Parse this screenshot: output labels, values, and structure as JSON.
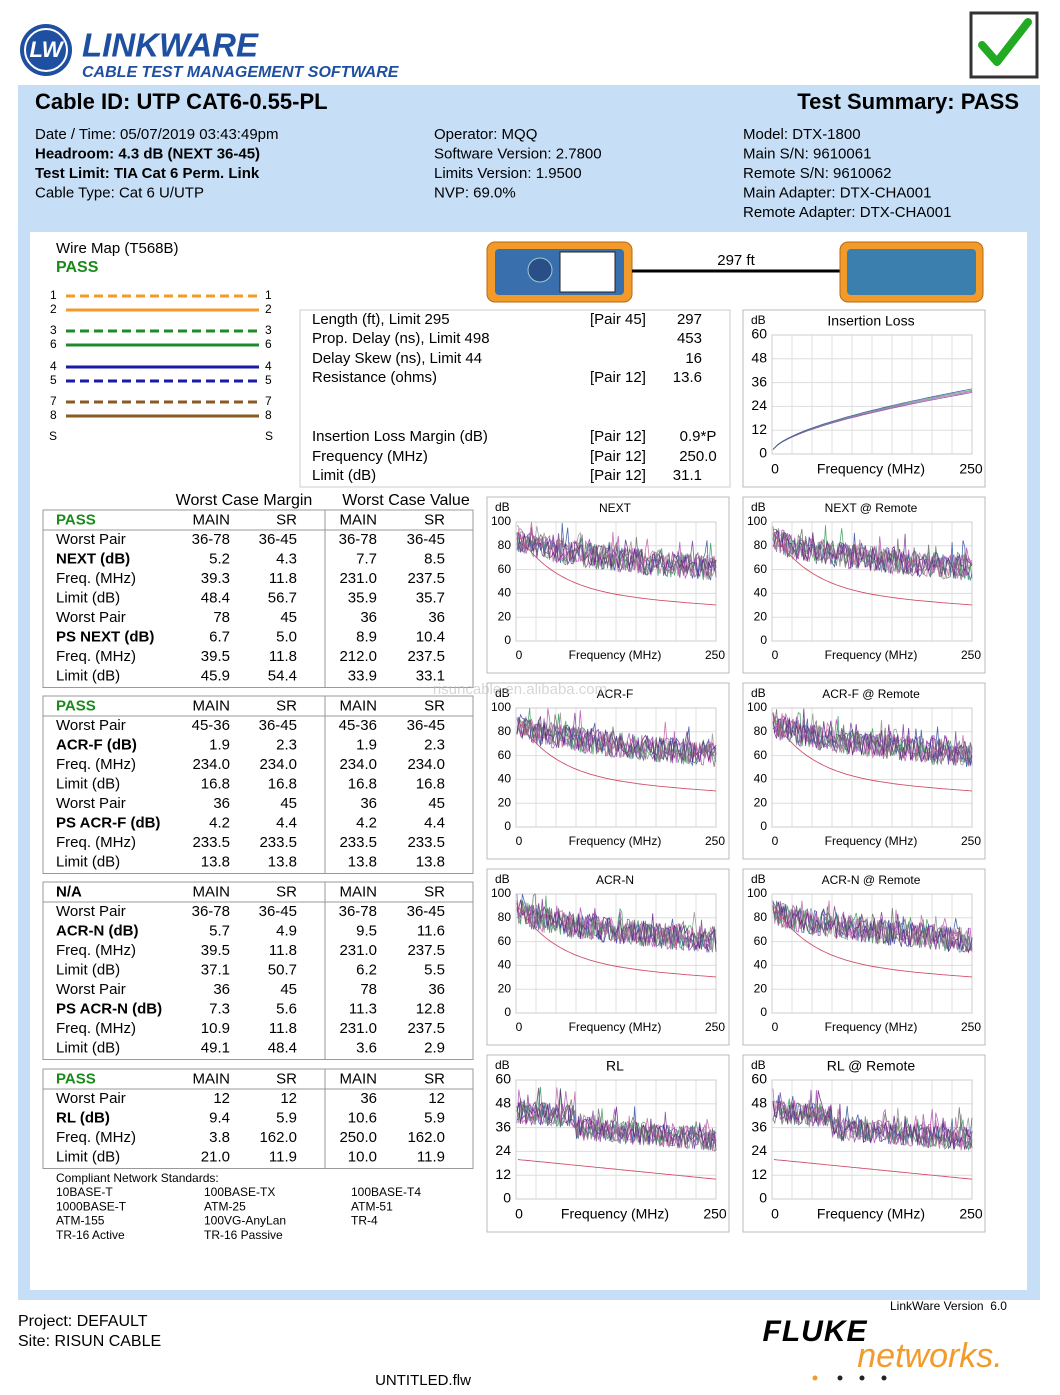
{
  "header": {
    "logo": "LW",
    "brand": "LINKWARE",
    "tagline": "CABLE TEST MANAGEMENT SOFTWARE"
  },
  "cable_id": "Cable ID: UTP CAT6-0.55-PL",
  "summary": "Test Summary: PASS",
  "info": [
    [
      {
        "text": "Date / Time: 05/07/2019 03:43:49pm"
      },
      {
        "text": "Headroom: 4.3 dB (NEXT 36-45)",
        "bold": true
      },
      {
        "text": "Test Limit: TIA Cat 6 Perm. Link",
        "bold": true
      },
      {
        "text": "Cable Type: Cat 6 U/UTP"
      }
    ],
    [
      {
        "text": "Operator: MQQ"
      },
      {
        "text": "Software Version: 2.7800"
      },
      {
        "text": "Limits Version: 1.9500"
      },
      {
        "text": "NVP: 69.0%"
      }
    ],
    [
      {
        "text": "Model: DTX-1800"
      },
      {
        "text": "Main S/N: 9610061"
      },
      {
        "text": "Remote S/N: 9610062"
      },
      {
        "text": "Main Adapter: DTX-CHA001"
      },
      {
        "text": "Remote Adapter: DTX-CHA001"
      }
    ]
  ],
  "wire_map": {
    "title": "Wire Map (T568B)",
    "status": "PASS",
    "pins": [
      {
        "label": "1",
        "color": "#f39a2a",
        "dashed": true
      },
      {
        "label": "2",
        "color": "#f39a2a",
        "dashed": false
      },
      {
        "label": "3",
        "color": "#1d8a2e",
        "dashed": true
      },
      {
        "label": "6",
        "color": "#1d8a2e",
        "dashed": false
      },
      {
        "label": "4",
        "color": "#1a1aa8",
        "dashed": false
      },
      {
        "label": "5",
        "color": "#1a1aa8",
        "dashed": true
      },
      {
        "label": "7",
        "color": "#8a5a20",
        "dashed": true
      },
      {
        "label": "8",
        "color": "#8a5a20",
        "dashed": false
      }
    ],
    "shield": "S"
  },
  "link": {
    "length": "297 ft"
  },
  "results": [
    {
      "label": "Length (ft), Limit 295",
      "pair": "[Pair 45]",
      "value": "297"
    },
    {
      "label": "Prop. Delay (ns), Limit 498",
      "value": "453"
    },
    {
      "label": "Delay Skew (ns), Limit 44",
      "value": "16"
    },
    {
      "label": "Resistance (ohms)",
      "pair": "[Pair 12]",
      "value": "13.6"
    },
    {
      "label": "Insertion Loss Margin (dB)",
      "pair": "[Pair 12]",
      "value": "0.9*P"
    },
    {
      "label": "Frequency (MHz)",
      "pair": "[Pair 12]",
      "value": "250.0"
    },
    {
      "label": "Limit (dB)",
      "pair": "[Pair 12]",
      "value": "31.1"
    }
  ],
  "table": {
    "group_headers": [
      "Worst Case Margin",
      "Worst Case Value"
    ],
    "blocks": [
      {
        "status_color": "#1a8a1a",
        "bold_rows": [
          2,
          6
        ],
        "rows": [
          [
            "PASS",
            "MAIN",
            "SR",
            "MAIN",
            "SR"
          ],
          [
            "Worst Pair",
            "36-78",
            "36-45",
            "36-78",
            "36-45"
          ],
          [
            "NEXT (dB)",
            "5.2",
            "4.3",
            "7.7",
            "8.5"
          ],
          [
            "Freq. (MHz)",
            "39.3",
            "11.8",
            "231.0",
            "237.5"
          ],
          [
            "Limit (dB)",
            "48.4",
            "56.7",
            "35.9",
            "35.7"
          ],
          [
            "Worst Pair",
            "78",
            "45",
            "36",
            "36"
          ],
          [
            "PS NEXT (dB)",
            "6.7",
            "5.0",
            "8.9",
            "10.4"
          ],
          [
            "Freq. (MHz)",
            "39.5",
            "11.8",
            "212.0",
            "237.5"
          ],
          [
            "Limit (dB)",
            "45.9",
            "54.4",
            "33.9",
            "33.1"
          ]
        ]
      },
      {
        "status_color": "#1a8a1a",
        "bold_rows": [
          2,
          6
        ],
        "rows": [
          [
            "PASS",
            "MAIN",
            "SR",
            "MAIN",
            "SR"
          ],
          [
            "Worst Pair",
            "45-36",
            "36-45",
            "45-36",
            "36-45"
          ],
          [
            "ACR-F (dB)",
            "1.9",
            "2.3",
            "1.9",
            "2.3"
          ],
          [
            "Freq. (MHz)",
            "234.0",
            "234.0",
            "234.0",
            "234.0"
          ],
          [
            "Limit (dB)",
            "16.8",
            "16.8",
            "16.8",
            "16.8"
          ],
          [
            "Worst Pair",
            "36",
            "45",
            "36",
            "45"
          ],
          [
            "PS ACR-F (dB)",
            "4.2",
            "4.4",
            "4.2",
            "4.4"
          ],
          [
            "Freq. (MHz)",
            "233.5",
            "233.5",
            "233.5",
            "233.5"
          ],
          [
            "Limit (dB)",
            "13.8",
            "13.8",
            "13.8",
            "13.8"
          ]
        ]
      },
      {
        "status_color": "#000000",
        "bold_rows": [
          2,
          6
        ],
        "rows": [
          [
            "N/A",
            "MAIN",
            "SR",
            "MAIN",
            "SR"
          ],
          [
            "Worst Pair",
            "36-78",
            "36-45",
            "36-78",
            "36-45"
          ],
          [
            "ACR-N (dB)",
            "5.7",
            "4.9",
            "9.5",
            "11.6"
          ],
          [
            "Freq. (MHz)",
            "39.5",
            "11.8",
            "231.0",
            "237.5"
          ],
          [
            "Limit (dB)",
            "37.1",
            "50.7",
            "6.2",
            "5.5"
          ],
          [
            "Worst Pair",
            "36",
            "45",
            "78",
            "36"
          ],
          [
            "PS ACR-N (dB)",
            "7.3",
            "5.6",
            "11.3",
            "12.8"
          ],
          [
            "Freq. (MHz)",
            "10.9",
            "11.8",
            "231.0",
            "237.5"
          ],
          [
            "Limit (dB)",
            "49.1",
            "48.4",
            "3.6",
            "2.9"
          ]
        ]
      },
      {
        "status_color": "#1a8a1a",
        "bold_rows": [
          2
        ],
        "rows": [
          [
            "PASS",
            "MAIN",
            "SR",
            "MAIN",
            "SR"
          ],
          [
            "Worst Pair",
            "12",
            "12",
            "36",
            "12"
          ],
          [
            "RL (dB)",
            "9.4",
            "5.9",
            "10.6",
            "5.9"
          ],
          [
            "Freq. (MHz)",
            "3.8",
            "162.0",
            "250.0",
            "162.0"
          ],
          [
            "Limit (dB)",
            "21.0",
            "11.9",
            "10.0",
            "11.9"
          ]
        ]
      }
    ]
  },
  "charts": [
    {
      "title": "Insertion Loss",
      "y_unit": "dB",
      "x_label": "Frequency (MHz)",
      "xticks": [
        0,
        250
      ],
      "ylim": [
        0,
        60
      ],
      "yticks": [
        60,
        48,
        36,
        24,
        12,
        0
      ]
    },
    {
      "title": "NEXT",
      "y_unit": "dB",
      "x_label": "Frequency (MHz)",
      "xticks": [
        0,
        250
      ],
      "ylim": [
        0,
        100
      ],
      "yticks": [
        100,
        80,
        60,
        40,
        20,
        0
      ]
    },
    {
      "title": "NEXT @ Remote",
      "y_unit": "dB",
      "x_label": "Frequency (MHz)",
      "xticks": [
        0,
        250
      ],
      "ylim": [
        0,
        100
      ],
      "yticks": [
        100,
        80,
        60,
        40,
        20,
        0
      ]
    },
    {
      "title": "ACR-F",
      "y_unit": "dB",
      "x_label": "Frequency (MHz)",
      "xticks": [
        0,
        250
      ],
      "ylim": [
        0,
        100
      ],
      "yticks": [
        100,
        80,
        60,
        40,
        20,
        0
      ]
    },
    {
      "title": "ACR-F @ Remote",
      "y_unit": "dB",
      "x_label": "Frequency (MHz)",
      "xticks": [
        0,
        250
      ],
      "ylim": [
        0,
        100
      ],
      "yticks": [
        100,
        80,
        60,
        40,
        20,
        0
      ]
    },
    {
      "title": "ACR-N",
      "y_unit": "dB",
      "x_label": "Frequency (MHz)",
      "xticks": [
        0,
        250
      ],
      "ylim": [
        0,
        100
      ],
      "yticks": [
        100,
        80,
        60,
        40,
        20,
        0
      ]
    },
    {
      "title": "ACR-N @ Remote",
      "y_unit": "dB",
      "x_label": "Frequency (MHz)",
      "xticks": [
        0,
        250
      ],
      "ylim": [
        0,
        100
      ],
      "yticks": [
        100,
        80,
        60,
        40,
        20,
        0
      ]
    },
    {
      "title": "RL",
      "y_unit": "dB",
      "x_label": "Frequency (MHz)",
      "xticks": [
        0,
        250
      ],
      "ylim": [
        0,
        60
      ],
      "yticks": [
        60,
        48,
        36,
        24,
        12,
        0
      ]
    },
    {
      "title": "RL @ Remote",
      "y_unit": "dB",
      "x_label": "Frequency (MHz)",
      "xticks": [
        0,
        250
      ],
      "ylim": [
        0,
        60
      ],
      "yticks": [
        60,
        48,
        36,
        24,
        12,
        0
      ]
    }
  ],
  "standards": {
    "title": "Compliant Network Standards:",
    "columns": [
      [
        "10BASE-T",
        "1000BASE-T",
        "ATM-155",
        "TR-16 Active"
      ],
      [
        "100BASE-TX",
        "ATM-25",
        "100VG-AnyLan",
        "TR-16 Passive"
      ],
      [
        "100BASE-T4",
        "ATM-51",
        "TR-4"
      ]
    ]
  },
  "watermark": "risuncable.en.alibaba.com",
  "footer": {
    "version": "LinkWare Version  6.0",
    "project": "Project: DEFAULT",
    "site": "Site: RISUN CABLE",
    "file": "UNTITLED.flw",
    "brand": "FLUKE",
    "brand_sub": "networks."
  }
}
